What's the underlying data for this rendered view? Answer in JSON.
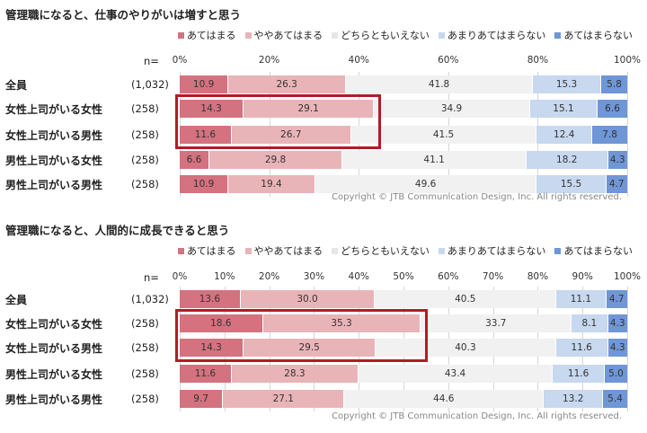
{
  "colors": {
    "cat1": "#d4727f",
    "cat2": "#e9b4b8",
    "cat3": "#f1f1f1",
    "cat4": "#c7d8ef",
    "cat5": "#6f96d6",
    "highlight": "#b01c26"
  },
  "chart_data": [
    {
      "type": "bar",
      "orientation": "horizontal-stacked-100",
      "title": "管理職になると、仕事のやりがいは増すと思う",
      "n_label": "n=",
      "categories": [
        "全員",
        "女性上司がいる女性",
        "女性上司がいる男性",
        "男性上司がいる女性",
        "男性上司がいる男性"
      ],
      "n_values": [
        "(1,032)",
        "(258)",
        "(258)",
        "(258)",
        "(258)"
      ],
      "ticks": [
        "0%",
        "20%",
        "40%",
        "60%",
        "80%",
        "100%"
      ],
      "xlim": [
        0,
        100
      ],
      "series": [
        {
          "name": "あてはまる",
          "values": [
            10.9,
            14.3,
            11.6,
            6.6,
            10.9
          ]
        },
        {
          "name": "ややあてはまる",
          "values": [
            26.3,
            29.1,
            26.7,
            29.8,
            19.4
          ]
        },
        {
          "name": "どちらともいえない",
          "values": [
            41.8,
            34.9,
            41.5,
            41.1,
            49.6
          ]
        },
        {
          "name": "あまりあてはまらない",
          "values": [
            15.3,
            15.1,
            12.4,
            18.2,
            15.5
          ]
        },
        {
          "name": "あてはまらない",
          "values": [
            5.8,
            6.6,
            7.8,
            4.3,
            4.7
          ]
        }
      ],
      "legend": "top-right",
      "highlight_rows": [
        1,
        2
      ],
      "copyright": "Copyright © JTB Communication Design, Inc. All rights reserved."
    },
    {
      "type": "bar",
      "orientation": "horizontal-stacked-100",
      "title": "管理職になると、人間的に成長できると思う",
      "n_label": "n=",
      "categories": [
        "全員",
        "女性上司がいる女性",
        "女性上司がいる男性",
        "男性上司がいる女性",
        "男性上司がいる男性"
      ],
      "n_values": [
        "(1,032)",
        "(258)",
        "(258)",
        "(258)",
        "(258)"
      ],
      "ticks": [
        "0%",
        "10%",
        "20%",
        "30%",
        "40%",
        "50%",
        "60%",
        "70%",
        "80%",
        "90%",
        "100%"
      ],
      "xlim": [
        0,
        100
      ],
      "series": [
        {
          "name": "あてはまる",
          "values": [
            13.6,
            18.6,
            14.3,
            11.6,
            9.7
          ]
        },
        {
          "name": "ややあてはまる",
          "values": [
            30.0,
            35.3,
            29.5,
            28.3,
            27.1
          ]
        },
        {
          "name": "どちらともいえない",
          "values": [
            40.5,
            33.7,
            40.3,
            43.4,
            44.6
          ]
        },
        {
          "name": "あまりあてはまらない",
          "values": [
            11.1,
            8.1,
            11.6,
            11.6,
            13.2
          ]
        },
        {
          "name": "あてはまらない",
          "values": [
            4.7,
            4.3,
            4.3,
            5.0,
            5.4
          ]
        }
      ],
      "legend": "top-right",
      "highlight_rows": [
        1,
        2
      ],
      "copyright": "Copyright © JTB Communication Design, Inc. All rights reserved."
    }
  ]
}
